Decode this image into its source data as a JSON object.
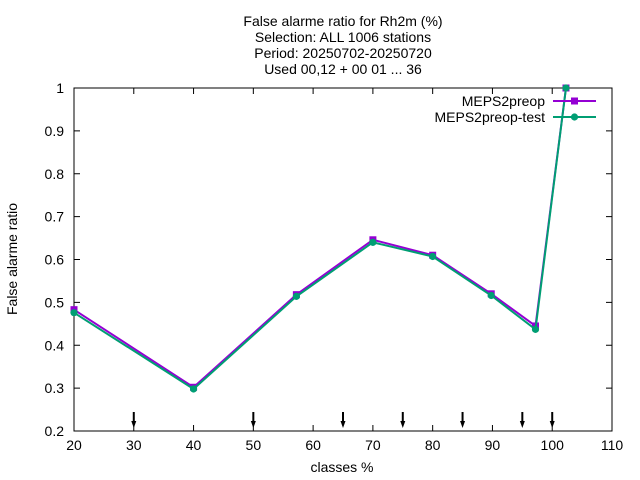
{
  "chart_data": {
    "type": "line",
    "title_lines": [
      "False alarme ratio  for Rh2m (%)",
      "Selection: ALL    1006 stations",
      "Period: 20250702-20250720",
      "Used 00,12 + 00 01 ... 36"
    ],
    "xlabel": "classes %",
    "ylabel": "False alarme ratio",
    "xlim": [
      20,
      110
    ],
    "ylim": [
      0.2,
      1.0
    ],
    "xticks": [
      20,
      30,
      40,
      50,
      60,
      70,
      80,
      90,
      100,
      110
    ],
    "yticks": [
      0.2,
      0.3,
      0.4,
      0.5,
      0.6,
      0.7,
      0.8,
      0.9,
      1
    ],
    "ytick_labels": [
      "0.2",
      "0.3",
      "0.4",
      "0.5",
      "0.6",
      "0.7",
      "0.8",
      "0.9",
      "1"
    ],
    "legend_position": "top-right",
    "threshold_arrows_x": [
      30,
      50,
      65,
      75,
      85,
      95,
      100
    ],
    "series": [
      {
        "name": "MEPS2preop",
        "color": "#9400d3",
        "marker": "square",
        "x": [
          20,
          40,
          57.2,
          70,
          80,
          89.8,
          97.2,
          102.3
        ],
        "y": [
          0.483,
          0.302,
          0.518,
          0.646,
          0.61,
          0.52,
          0.445,
          1.0
        ]
      },
      {
        "name": "MEPS2preop-test",
        "color": "#009e73",
        "marker": "circle",
        "x": [
          20,
          40,
          57.2,
          70,
          80,
          89.8,
          97.2,
          102.3
        ],
        "y": [
          0.476,
          0.298,
          0.514,
          0.64,
          0.607,
          0.516,
          0.437,
          1.0
        ]
      }
    ]
  }
}
